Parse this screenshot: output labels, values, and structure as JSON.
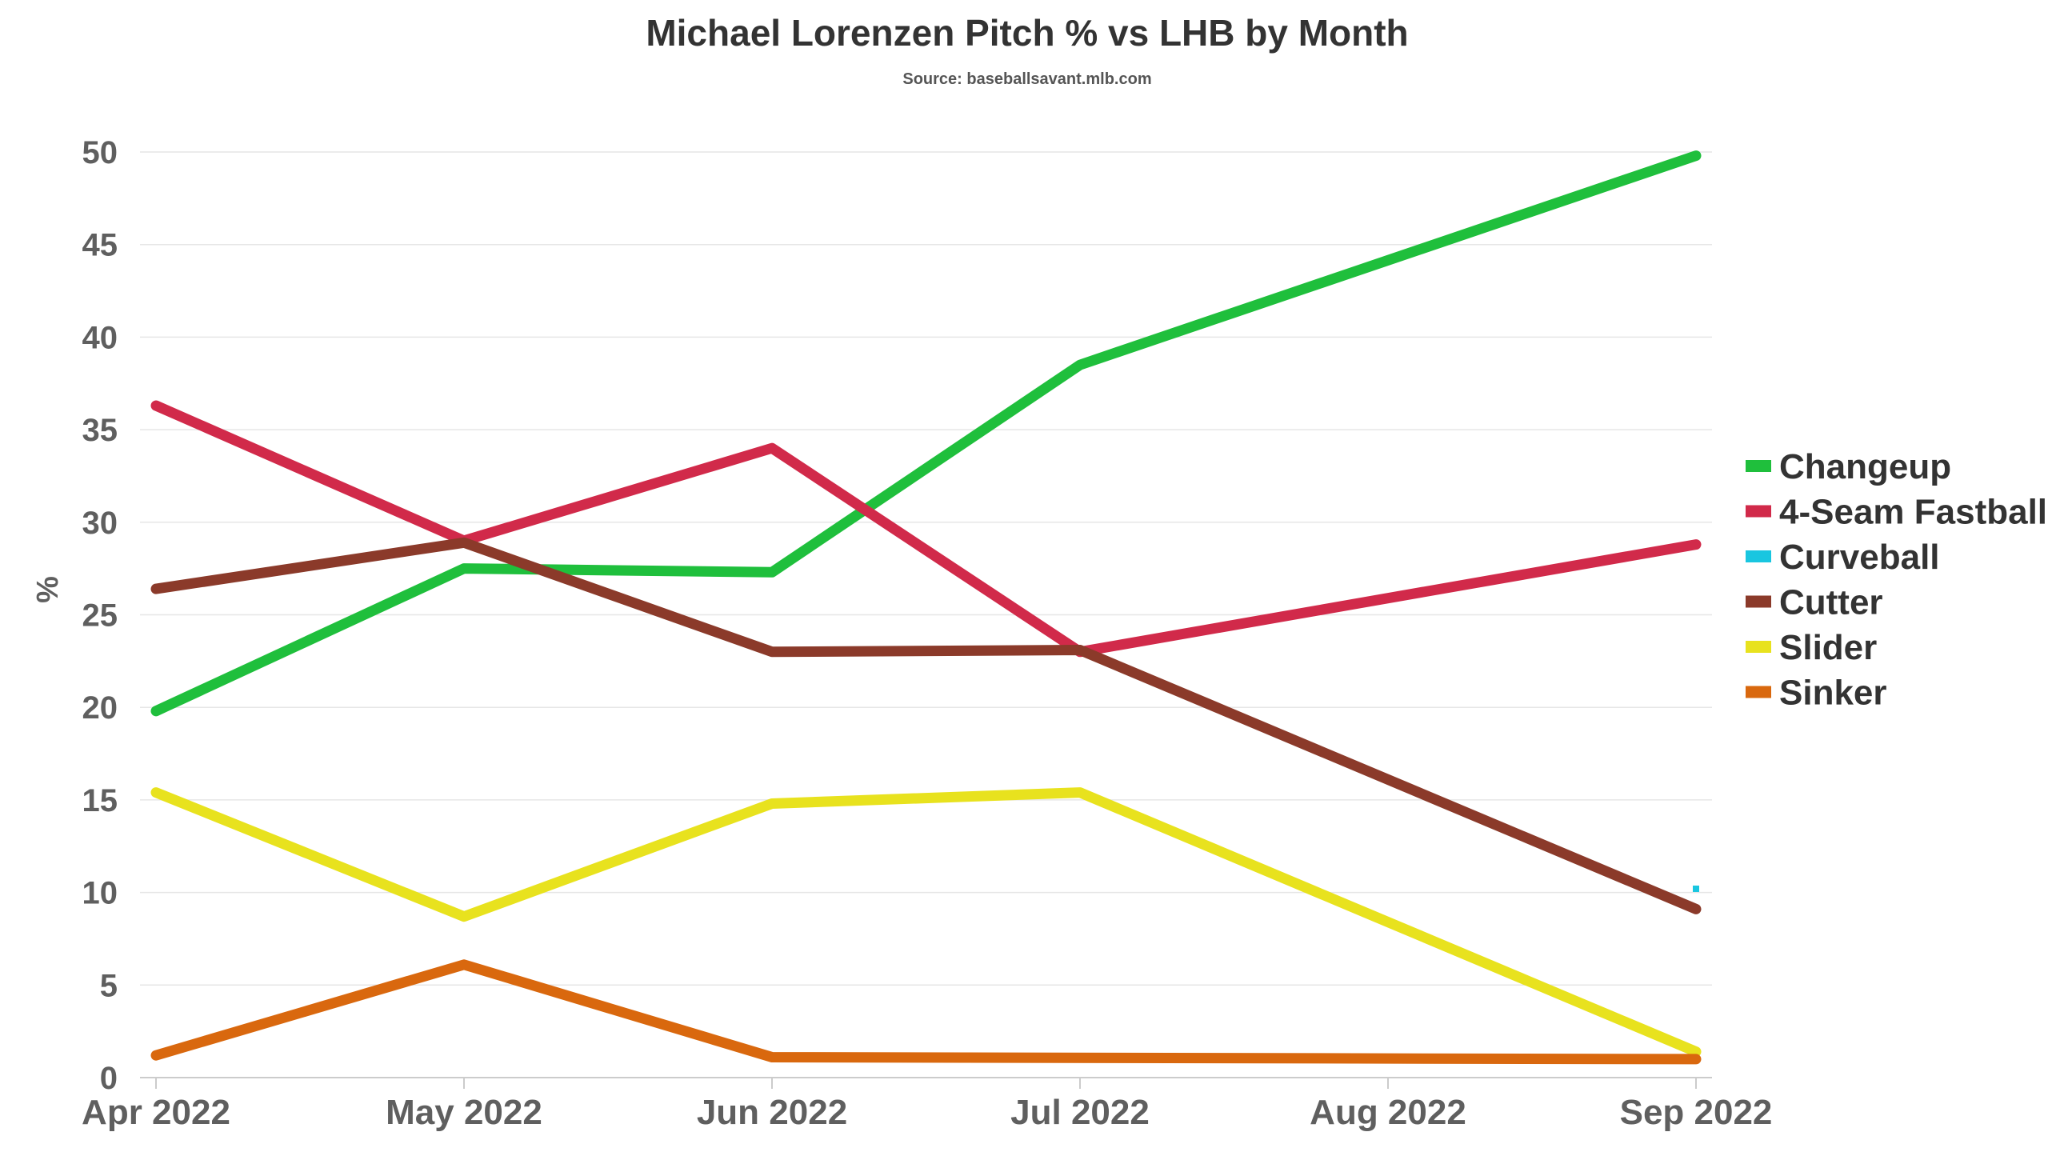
{
  "chart_data": {
    "type": "line",
    "title": "Michael Lorenzen Pitch % vs LHB by Month",
    "subtitle": "Source: baseballsavant.mlb.com",
    "xlabel": "",
    "ylabel": "%",
    "categories": [
      "Apr 2022",
      "May 2022",
      "Jun 2022",
      "Jul 2022",
      "Aug 2022",
      "Sep 2022"
    ],
    "ylim": [
      0,
      50
    ],
    "yticks": [
      0,
      5,
      10,
      15,
      20,
      25,
      30,
      35,
      40,
      45,
      50
    ],
    "grid": true,
    "legend_position": "right",
    "series": [
      {
        "name": "Changeup",
        "color": "#1fbf3c",
        "values": [
          19.8,
          27.5,
          27.3,
          38.5,
          null,
          49.8
        ]
      },
      {
        "name": "4-Seam Fastball",
        "color": "#d12a4a",
        "values": [
          36.3,
          29.0,
          34.0,
          23.0,
          null,
          28.8
        ]
      },
      {
        "name": "Curveball",
        "color": "#19c6e0",
        "values": [
          null,
          null,
          null,
          null,
          null,
          10.2
        ]
      },
      {
        "name": "Cutter",
        "color": "#8b3a2a",
        "values": [
          26.4,
          28.9,
          23.0,
          23.1,
          null,
          9.1
        ]
      },
      {
        "name": "Slider",
        "color": "#e8e21e",
        "values": [
          15.4,
          8.7,
          14.8,
          15.4,
          null,
          1.4
        ]
      },
      {
        "name": "Sinker",
        "color": "#d9680e",
        "values": [
          1.2,
          6.1,
          1.1,
          null,
          null,
          1.0
        ]
      }
    ]
  }
}
